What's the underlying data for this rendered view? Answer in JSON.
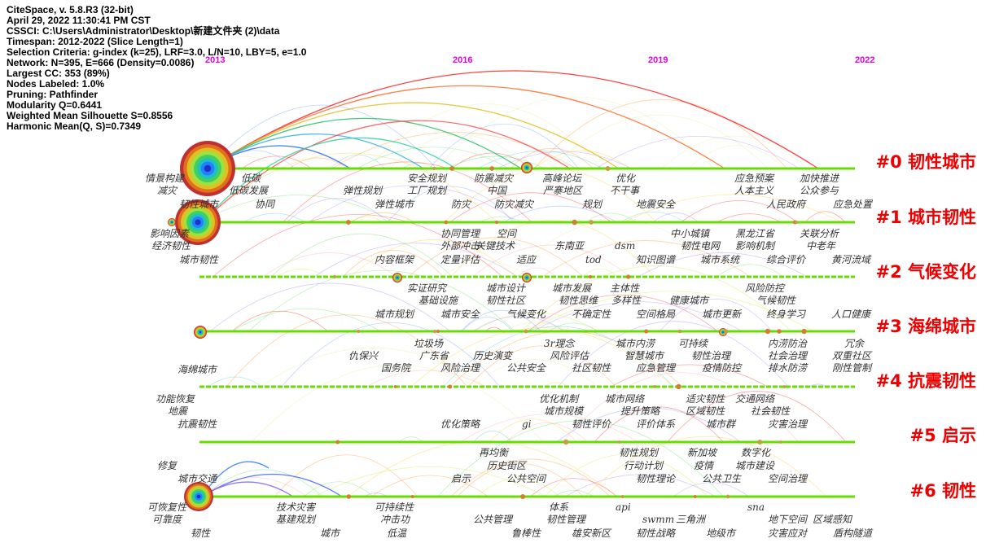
{
  "header": {
    "lines": [
      "CiteSpace, v. 5.8.R3 (32-bit)",
      "April 29, 2022 11:30:41 PM CST",
      "CSSCI: C:\\Users\\Administrator\\Desktop\\新建文件夹 (2)\\data",
      "Timespan: 2012-2022 (Slice Length=1)",
      "Selection Criteria: g-index (k=25), LRF=3.0, L/N=10, LBY=5, e=1.0",
      "Network: N=395, E=666 (Density=0.0086)",
      "Largest CC: 353 (89%)",
      "Nodes Labeled: 1.0%",
      "Pruning: Pathfinder",
      "Modularity Q=0.6441",
      "Weighted Mean Silhouette S=0.8556",
      "Harmonic Mean(Q, S)=0.7349"
    ]
  },
  "years": [
    "2013",
    "2016",
    "2019",
    "2022"
  ],
  "colors": {
    "cluster_label": "#ee0000",
    "year_label": "#e000e0",
    "timeline": "#66dd00",
    "keyword": "#333333"
  },
  "clusters": [
    {
      "label": "#0 韧性城市",
      "keywords": [
        "情景构建",
        "减灾",
        "低碳",
        "低碳发展",
        "安全规划",
        "弹性规划",
        "工厂规划",
        "防震减灾",
        "中国",
        "高峰论坛",
        "严寨地区",
        "优化",
        "不干事",
        "应急预案",
        "人本主义",
        "加快推进",
        "公众参与"
      ]
    },
    {
      "label": "#1 城市韧性",
      "keywords": [
        "韧性城市",
        "协同",
        "弹性城市",
        "防灾",
        "防灾减灾",
        "规划",
        "地震安全",
        "人民政府",
        "应急处置",
        "影响因素",
        "经济韧性",
        "城市韧性",
        "协同管理",
        "空间",
        "外部冲击",
        "关键技术",
        "定量评估",
        "内容框架",
        "适应",
        "东南亚",
        "dsm",
        "tod",
        "知识图谱",
        "中小城镇",
        "韧性电网",
        "黑龙江省",
        "影响机制",
        "城市系统",
        "关联分析",
        "中老年",
        "综合评价",
        "黄河流域"
      ]
    },
    {
      "label": "#2 气候变化",
      "keywords": [
        "实证研究",
        "基础设施",
        "城市规划",
        "城市设计",
        "韧性社区",
        "城市安全",
        "气候变化",
        "城市发展",
        "韧性思维",
        "主体性",
        "多样性",
        "不确定性",
        "空间格局",
        "健康城市",
        "城市更新",
        "风险防控",
        "气候韧性",
        "终身学习",
        "人口健康"
      ]
    },
    {
      "label": "#3 海绵城市",
      "keywords": [
        "海绵城市",
        "垃圾场",
        "仇保兴",
        "广东省",
        "国务院",
        "历史演变",
        "风险治理",
        "3r理念",
        "风险评估",
        "公共安全",
        "社区韧性",
        "城市内涝",
        "智慧城市",
        "应急管理",
        "可持续",
        "韧性治理",
        "疫情防控",
        "内涝防治",
        "社会治理",
        "排水防涝",
        "冗余",
        "双重社区",
        "刚性管制"
      ]
    },
    {
      "label": "#4 抗震韧性",
      "keywords": [
        "功能恢复",
        "地震",
        "抗震韧性",
        "优化机制",
        "城市规模",
        "优化策略",
        "gi",
        "韧性评价",
        "城市网络",
        "提升策略",
        "评价体系",
        "适灾韧性",
        "区域韧性",
        "城市群",
        "交通网络",
        "社会韧性",
        "灾害治理"
      ]
    },
    {
      "label": "#5 启示",
      "keywords": [
        "修复",
        "城市交通",
        "再均衡",
        "历史街区",
        "启示",
        "公共空间",
        "韧性规划",
        "行动计划",
        "韧性理论",
        "新加坡",
        "疫情",
        "公共卫生",
        "数字化",
        "城市建设",
        "空间治理"
      ]
    },
    {
      "label": "#6 韧性",
      "keywords": [
        "可恢复性",
        "可靠度",
        "韧性",
        "技术灾害",
        "基建规划",
        "城市",
        "可持续性",
        "冲击功",
        "低温",
        "公共管理",
        "鲁棒性",
        "体系",
        "韧性管理",
        "雄安新区",
        "api",
        "swmm",
        "韧性战略",
        "三角洲",
        "地级市",
        "sna",
        "地下空间",
        "灾害应对",
        "区域感知",
        "盾构隧道"
      ]
    }
  ]
}
